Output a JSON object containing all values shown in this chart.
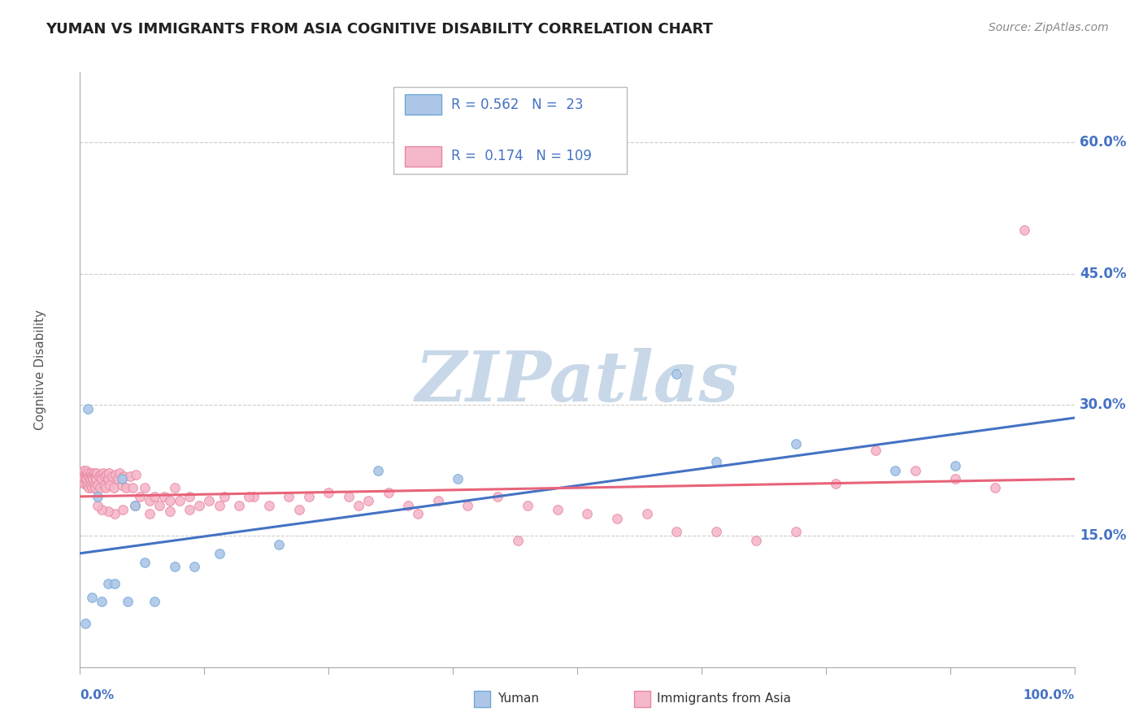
{
  "title": "YUMAN VS IMMIGRANTS FROM ASIA COGNITIVE DISABILITY CORRELATION CHART",
  "source": "Source: ZipAtlas.com",
  "ylabel": "Cognitive Disability",
  "right_yticks": [
    "60.0%",
    "45.0%",
    "30.0%",
    "15.0%"
  ],
  "right_ytick_vals": [
    0.6,
    0.45,
    0.3,
    0.15
  ],
  "legend_r_blue": "0.562",
  "legend_n_blue": "23",
  "legend_r_pink": "0.174",
  "legend_n_pink": "109",
  "blue_scatter_color": "#adc6e8",
  "pink_scatter_color": "#f5b8ca",
  "blue_edge_color": "#6fa8d4",
  "pink_edge_color": "#e885a0",
  "blue_line_color": "#4472C4",
  "pink_line_color": "#E8637A",
  "background_color": "#ffffff",
  "grid_color": "#cccccc",
  "axis_color": "#aaaaaa",
  "title_color": "#222222",
  "ylabel_color": "#555555",
  "tick_label_color": "#4472C4",
  "watermark_color": "#c8d8e8",
  "blue_x": [
    0.005,
    0.008,
    0.012,
    0.018,
    0.022,
    0.028,
    0.035,
    0.042,
    0.048,
    0.055,
    0.065,
    0.075,
    0.095,
    0.115,
    0.14,
    0.2,
    0.3,
    0.38,
    0.6,
    0.64,
    0.72,
    0.82,
    0.88
  ],
  "blue_y": [
    0.05,
    0.295,
    0.08,
    0.195,
    0.075,
    0.095,
    0.095,
    0.215,
    0.075,
    0.185,
    0.12,
    0.075,
    0.115,
    0.115,
    0.13,
    0.14,
    0.225,
    0.215,
    0.335,
    0.235,
    0.255,
    0.225,
    0.23
  ],
  "blue_line_x0": 0.0,
  "blue_line_x1": 1.0,
  "blue_line_y0": 0.13,
  "blue_line_y1": 0.285,
  "pink_line_x0": 0.0,
  "pink_line_x1": 1.0,
  "pink_line_y0": 0.195,
  "pink_line_y1": 0.215,
  "pink_x": [
    0.002,
    0.003,
    0.004,
    0.004,
    0.005,
    0.005,
    0.006,
    0.006,
    0.007,
    0.007,
    0.008,
    0.008,
    0.009,
    0.009,
    0.01,
    0.01,
    0.011,
    0.011,
    0.012,
    0.012,
    0.013,
    0.013,
    0.014,
    0.014,
    0.015,
    0.015,
    0.016,
    0.016,
    0.017,
    0.018,
    0.019,
    0.02,
    0.021,
    0.022,
    0.023,
    0.024,
    0.025,
    0.026,
    0.027,
    0.028,
    0.029,
    0.03,
    0.032,
    0.034,
    0.036,
    0.038,
    0.04,
    0.042,
    0.044,
    0.046,
    0.05,
    0.053,
    0.056,
    0.06,
    0.065,
    0.07,
    0.075,
    0.08,
    0.085,
    0.09,
    0.095,
    0.1,
    0.11,
    0.12,
    0.13,
    0.145,
    0.16,
    0.175,
    0.19,
    0.21,
    0.23,
    0.25,
    0.27,
    0.29,
    0.31,
    0.33,
    0.36,
    0.39,
    0.42,
    0.45,
    0.48,
    0.51,
    0.54,
    0.57,
    0.6,
    0.64,
    0.68,
    0.72,
    0.76,
    0.8,
    0.84,
    0.88,
    0.92,
    0.95,
    0.44,
    0.34,
    0.28,
    0.22,
    0.17,
    0.14,
    0.11,
    0.09,
    0.07,
    0.055,
    0.043,
    0.035,
    0.028,
    0.022,
    0.018
  ],
  "pink_y": [
    0.22,
    0.215,
    0.225,
    0.21,
    0.22,
    0.215,
    0.225,
    0.21,
    0.22,
    0.215,
    0.222,
    0.208,
    0.218,
    0.205,
    0.22,
    0.215,
    0.222,
    0.208,
    0.218,
    0.205,
    0.22,
    0.215,
    0.222,
    0.208,
    0.218,
    0.205,
    0.22,
    0.215,
    0.222,
    0.208,
    0.218,
    0.205,
    0.22,
    0.215,
    0.222,
    0.208,
    0.218,
    0.205,
    0.22,
    0.215,
    0.222,
    0.208,
    0.218,
    0.205,
    0.22,
    0.215,
    0.222,
    0.208,
    0.218,
    0.205,
    0.218,
    0.205,
    0.22,
    0.195,
    0.205,
    0.19,
    0.195,
    0.185,
    0.195,
    0.19,
    0.205,
    0.19,
    0.195,
    0.185,
    0.19,
    0.195,
    0.185,
    0.195,
    0.185,
    0.195,
    0.195,
    0.2,
    0.195,
    0.19,
    0.2,
    0.185,
    0.19,
    0.185,
    0.195,
    0.185,
    0.18,
    0.175,
    0.17,
    0.175,
    0.155,
    0.155,
    0.145,
    0.155,
    0.21,
    0.248,
    0.225,
    0.215,
    0.205,
    0.5,
    0.145,
    0.175,
    0.185,
    0.18,
    0.195,
    0.185,
    0.18,
    0.178,
    0.175,
    0.185,
    0.18,
    0.175,
    0.178,
    0.18,
    0.185
  ],
  "xlim": [
    0.0,
    1.0
  ],
  "ylim": [
    0.0,
    0.68
  ]
}
